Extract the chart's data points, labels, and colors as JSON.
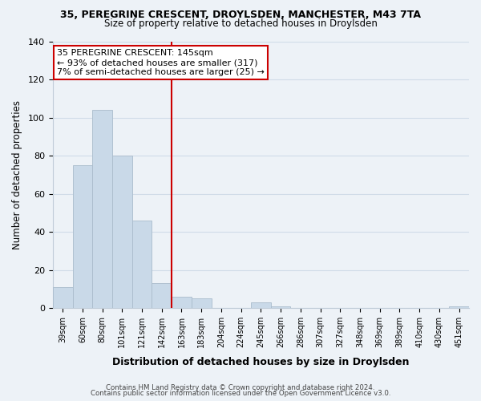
{
  "title_line1": "35, PEREGRINE CRESCENT, DROYLSDEN, MANCHESTER, M43 7TA",
  "title_line2": "Size of property relative to detached houses in Droylsden",
  "xlabel": "Distribution of detached houses by size in Droylsden",
  "ylabel": "Number of detached properties",
  "bar_labels": [
    "39sqm",
    "60sqm",
    "80sqm",
    "101sqm",
    "121sqm",
    "142sqm",
    "163sqm",
    "183sqm",
    "204sqm",
    "224sqm",
    "245sqm",
    "266sqm",
    "286sqm",
    "307sqm",
    "327sqm",
    "348sqm",
    "369sqm",
    "389sqm",
    "410sqm",
    "430sqm",
    "451sqm"
  ],
  "bar_values": [
    11,
    75,
    104,
    80,
    46,
    13,
    6,
    5,
    0,
    0,
    3,
    1,
    0,
    0,
    0,
    0,
    0,
    0,
    0,
    0,
    1
  ],
  "bar_color": "#c9d9e8",
  "bar_edge_color": "#aabccc",
  "vline_x_index": 5,
  "vline_color": "#cc0000",
  "ylim_max": 140,
  "annotation_title": "35 PEREGRINE CRESCENT: 145sqm",
  "annotation_line1": "← 93% of detached houses are smaller (317)",
  "annotation_line2": "7% of semi-detached houses are larger (25) →",
  "annotation_box_color": "#ffffff",
  "annotation_box_edge": "#cc0000",
  "footer_line1": "Contains HM Land Registry data © Crown copyright and database right 2024.",
  "footer_line2": "Contains public sector information licensed under the Open Government Licence v3.0.",
  "yticks": [
    0,
    20,
    40,
    60,
    80,
    100,
    120,
    140
  ],
  "grid_color": "#d0dce8",
  "background_color": "#edf2f7",
  "plot_bg_color": "#edf2f7"
}
